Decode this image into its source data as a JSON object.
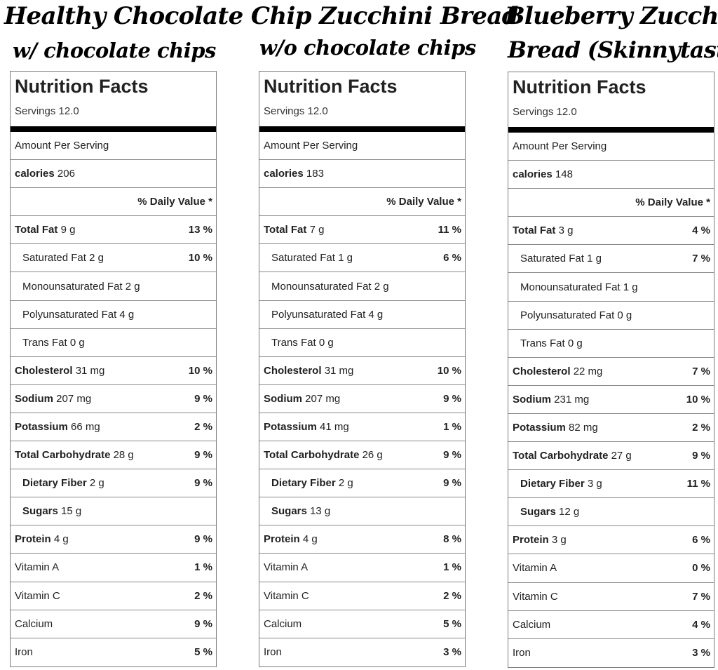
{
  "titles": {
    "main": "Healthy Chocolate Chip Zucchini Bread",
    "with_chips": "w/ chocolate chips",
    "without_chips": "w/o chocolate chips",
    "blueberry_line1": "Blueberry Zucchini",
    "blueberry_line2": "Bread (Skinnytaste)"
  },
  "labels": {
    "heading": "Nutrition Facts",
    "amount_per_serving": "Amount Per Serving",
    "daily_value": "% Daily Value *"
  },
  "panels": [
    {
      "servings": "Servings 12.0",
      "calories_label": "calories",
      "calories_value": "206",
      "rows": [
        {
          "label": "Total Fat",
          "value": "9 g",
          "pct": "13 %"
        },
        {
          "label": "Saturated Fat",
          "value": "2 g",
          "pct": "10 %"
        },
        {
          "label": "Monounsaturated Fat",
          "value": "2 g",
          "pct": ""
        },
        {
          "label": "Polyunsaturated Fat",
          "value": "4 g",
          "pct": ""
        },
        {
          "label": "Trans Fat",
          "value": "0 g",
          "pct": ""
        },
        {
          "label": "Cholesterol",
          "value": "31 mg",
          "pct": "10 %"
        },
        {
          "label": "Sodium",
          "value": "207 mg",
          "pct": "9 %"
        },
        {
          "label": "Potassium",
          "value": "66 mg",
          "pct": "2 %"
        },
        {
          "label": "Total Carbohydrate",
          "value": "28 g",
          "pct": "9 %"
        },
        {
          "label": "Dietary Fiber",
          "value": "2 g",
          "pct": "9 %"
        },
        {
          "label": "Sugars",
          "value": "15 g",
          "pct": ""
        },
        {
          "label": "Protein",
          "value": "4 g",
          "pct": "9 %"
        },
        {
          "label": "Vitamin A",
          "value": "",
          "pct": "1 %"
        },
        {
          "label": "Vitamin C",
          "value": "",
          "pct": "2 %"
        },
        {
          "label": "Calcium",
          "value": "",
          "pct": "9 %"
        },
        {
          "label": "Iron",
          "value": "",
          "pct": "5 %"
        }
      ]
    },
    {
      "servings": "Servings 12.0",
      "calories_label": "calories",
      "calories_value": "183",
      "rows": [
        {
          "label": "Total Fat",
          "value": "7 g",
          "pct": "11 %"
        },
        {
          "label": "Saturated Fat",
          "value": "1 g",
          "pct": "6 %"
        },
        {
          "label": "Monounsaturated Fat",
          "value": "2 g",
          "pct": ""
        },
        {
          "label": "Polyunsaturated Fat",
          "value": "4 g",
          "pct": ""
        },
        {
          "label": "Trans Fat",
          "value": "0 g",
          "pct": ""
        },
        {
          "label": "Cholesterol",
          "value": "31 mg",
          "pct": "10 %"
        },
        {
          "label": "Sodium",
          "value": "207 mg",
          "pct": "9 %"
        },
        {
          "label": "Potassium",
          "value": "41 mg",
          "pct": "1 %"
        },
        {
          "label": "Total Carbohydrate",
          "value": "26 g",
          "pct": "9 %"
        },
        {
          "label": "Dietary Fiber",
          "value": "2 g",
          "pct": "9 %"
        },
        {
          "label": "Sugars",
          "value": "13 g",
          "pct": ""
        },
        {
          "label": "Protein",
          "value": "4 g",
          "pct": "8 %"
        },
        {
          "label": "Vitamin A",
          "value": "",
          "pct": "1 %"
        },
        {
          "label": "Vitamin C",
          "value": "",
          "pct": "2 %"
        },
        {
          "label": "Calcium",
          "value": "",
          "pct": "5 %"
        },
        {
          "label": "Iron",
          "value": "",
          "pct": "3 %"
        }
      ]
    },
    {
      "servings": "Servings 12.0",
      "calories_label": "calories",
      "calories_value": "148",
      "rows": [
        {
          "label": "Total Fat",
          "value": "3 g",
          "pct": "4 %"
        },
        {
          "label": "Saturated Fat",
          "value": "1 g",
          "pct": "7 %"
        },
        {
          "label": "Monounsaturated Fat",
          "value": "1 g",
          "pct": ""
        },
        {
          "label": "Polyunsaturated Fat",
          "value": "0 g",
          "pct": ""
        },
        {
          "label": "Trans Fat",
          "value": "0 g",
          "pct": ""
        },
        {
          "label": "Cholesterol",
          "value": "22 mg",
          "pct": "7 %"
        },
        {
          "label": "Sodium",
          "value": "231 mg",
          "pct": "10 %"
        },
        {
          "label": "Potassium",
          "value": "82 mg",
          "pct": "2 %"
        },
        {
          "label": "Total Carbohydrate",
          "value": "27 g",
          "pct": "9 %"
        },
        {
          "label": "Dietary Fiber",
          "value": "3 g",
          "pct": "11 %"
        },
        {
          "label": "Sugars",
          "value": "12 g",
          "pct": ""
        },
        {
          "label": "Protein",
          "value": "3 g",
          "pct": "6 %"
        },
        {
          "label": "Vitamin A",
          "value": "",
          "pct": "0 %"
        },
        {
          "label": "Vitamin C",
          "value": "",
          "pct": "7 %"
        },
        {
          "label": "Calcium",
          "value": "",
          "pct": "4 %"
        },
        {
          "label": "Iron",
          "value": "",
          "pct": "3 %"
        }
      ]
    }
  ]
}
